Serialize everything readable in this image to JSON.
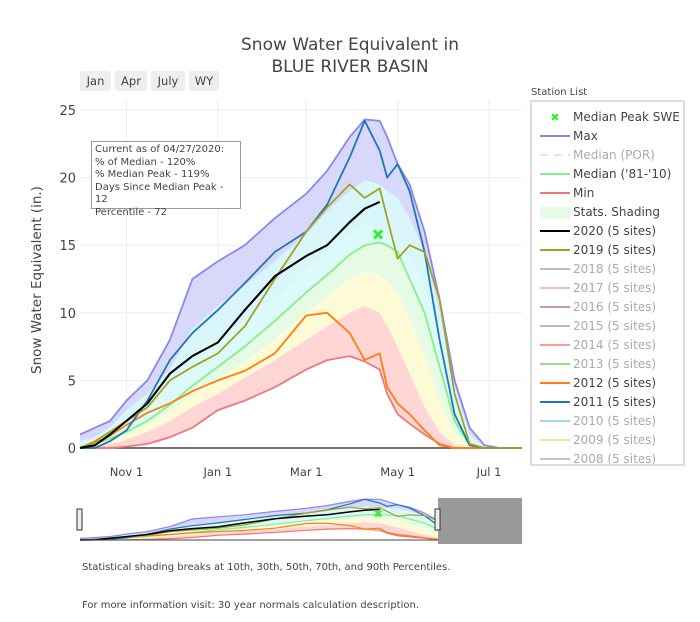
{
  "title_line1": "Snow Water Equivalent in",
  "title_line2": "BLUE RIVER BASIN",
  "range_buttons": [
    "Jan",
    "Apr",
    "July",
    "WY"
  ],
  "station_list_title": "Station List",
  "info_box": [
    "Current as of 04/27/2020:",
    "% of Median - 120%",
    "% Median Peak - 119%",
    "Days Since Median Peak - 12",
    "Percentile - 72"
  ],
  "footnotes": [
    "Statistical shading breaks at 10th, 30th, 50th, 70th, and 90th Percentiles.",
    "For more information visit: 30 year normals calculation description."
  ],
  "legend": [
    {
      "label": "Median Peak SWE",
      "type": "marker",
      "color": "#33ee33",
      "active": true
    },
    {
      "label": "Max",
      "type": "line",
      "color": "#8888ee",
      "active": true
    },
    {
      "label": "Median (POR)",
      "type": "dash",
      "color": "#ccf5cc",
      "active": false
    },
    {
      "label": "Median ('81-'10)",
      "type": "line",
      "color": "#88ee88",
      "active": true
    },
    {
      "label": "Min",
      "type": "line",
      "color": "#ee7777",
      "active": true
    },
    {
      "label": "Stats. Shading",
      "type": "fill",
      "color": "#e6fbe6",
      "active": true
    },
    {
      "label": "2020 (5 sites)",
      "type": "line",
      "color": "#000000",
      "active": true
    },
    {
      "label": "2019 (5 sites)",
      "type": "line",
      "color": "#a3a31f",
      "active": true
    },
    {
      "label": "2018 (5 sites)",
      "type": "line",
      "color": "#bbbbbb",
      "active": false
    },
    {
      "label": "2017 (5 sites)",
      "type": "line",
      "color": "#f7b6d2",
      "active": false
    },
    {
      "label": "2016 (5 sites)",
      "type": "line",
      "color": "#c49c94",
      "active": false
    },
    {
      "label": "2015 (5 sites)",
      "type": "line",
      "color": "#c5b0d5",
      "active": false
    },
    {
      "label": "2014 (5 sites)",
      "type": "line",
      "color": "#ff9896",
      "active": false
    },
    {
      "label": "2013 (5 sites)",
      "type": "line",
      "color": "#98df8a",
      "active": false
    },
    {
      "label": "2012 (5 sites)",
      "type": "line",
      "color": "#ff7f0e",
      "active": true
    },
    {
      "label": "2011 (5 sites)",
      "type": "line",
      "color": "#1f77b4",
      "active": true
    },
    {
      "label": "2010 (5 sites)",
      "type": "line",
      "color": "#9edae5",
      "active": false
    },
    {
      "label": "2009 (5 sites)",
      "type": "line",
      "color": "#e7e59a",
      "active": false
    },
    {
      "label": "2008 (5 sites)",
      "type": "line",
      "color": "#c7c7c7",
      "active": false
    }
  ],
  "chart_data": {
    "type": "line",
    "title": "Snow Water Equivalent in BLUE RIVER BASIN",
    "xlabel": "",
    "ylabel": "Snow Water Equivalent (in.)",
    "x_unit": "day of water year (0 = Oct 1)",
    "xlim": [
      0,
      295
    ],
    "ylim": [
      0,
      25
    ],
    "y_ticks": [
      0,
      5,
      10,
      15,
      20,
      25
    ],
    "x_ticks": [
      {
        "day": 31,
        "label": "Nov  1"
      },
      {
        "day": 92,
        "label": "Jan  1"
      },
      {
        "day": 151,
        "label": "Mar  1"
      },
      {
        "day": 212,
        "label": "May  1"
      },
      {
        "day": 273,
        "label": "Jul  1"
      }
    ],
    "grid": true,
    "legend_position": "right",
    "median_peak": {
      "day": 199,
      "value": 15.8,
      "label": "Median Peak SWE"
    },
    "shading_bands": [
      {
        "name": "min-p10",
        "color": "#ffd6d6"
      },
      {
        "name": "p10-p30",
        "color": "#fdfbd5"
      },
      {
        "name": "p30-p50",
        "color": "#e6fbe6"
      },
      {
        "name": "p50-p70",
        "color": "#ddfafa"
      },
      {
        "name": "p70-p90",
        "color": "#d9f7fb"
      },
      {
        "name": "p90-max",
        "color": "#d8d8fa"
      }
    ],
    "x": [
      0,
      10,
      20,
      31,
      45,
      60,
      75,
      92,
      110,
      130,
      151,
      165,
      180,
      190,
      200,
      205,
      212,
      220,
      230,
      240,
      250,
      260,
      270,
      280,
      295
    ],
    "series": [
      {
        "name": "Max",
        "color": "#8888ee",
        "values": [
          1.0,
          1.5,
          2.0,
          3.5,
          5.0,
          8.0,
          12.5,
          13.8,
          15.0,
          17.0,
          18.8,
          20.5,
          23.0,
          24.3,
          24.2,
          23.0,
          21.0,
          19.5,
          16.0,
          11.0,
          5.0,
          1.5,
          0.2,
          0,
          0
        ]
      },
      {
        "name": "p90",
        "color": "none",
        "values": [
          0.5,
          0.8,
          1.5,
          2.8,
          4.0,
          5.8,
          8.8,
          10.5,
          12.0,
          13.8,
          15.8,
          17.5,
          19.0,
          19.8,
          19.5,
          19.0,
          18.5,
          17.0,
          14.5,
          10.0,
          4.5,
          1.0,
          0.1,
          0,
          0
        ]
      },
      {
        "name": "p70",
        "color": "none",
        "values": [
          0.3,
          0.6,
          1.2,
          2.2,
          3.2,
          4.8,
          6.5,
          8.0,
          9.5,
          11.0,
          13.0,
          14.5,
          15.8,
          16.5,
          16.2,
          15.8,
          15.5,
          14.0,
          12.0,
          8.0,
          3.0,
          0.5,
          0,
          0,
          0
        ]
      },
      {
        "name": "Median ('81-'10)",
        "color": "#88ee88",
        "values": [
          0.1,
          0.3,
          0.7,
          1.2,
          2.0,
          3.2,
          4.6,
          6.0,
          7.5,
          9.4,
          11.5,
          12.8,
          14.3,
          15.0,
          15.2,
          15.0,
          14.5,
          12.5,
          10.0,
          6.0,
          2.0,
          0.2,
          0,
          0,
          0
        ]
      },
      {
        "name": "p30",
        "color": "none",
        "values": [
          0,
          0.2,
          0.5,
          1.0,
          1.7,
          2.7,
          3.9,
          5.0,
          6.4,
          8.0,
          10.0,
          11.2,
          12.5,
          13.0,
          12.8,
          12.3,
          11.5,
          9.5,
          7.0,
          3.5,
          1.0,
          0,
          0,
          0,
          0
        ]
      },
      {
        "name": "p10",
        "color": "none",
        "values": [
          0,
          0.1,
          0.3,
          0.6,
          1.2,
          2.0,
          3.0,
          4.0,
          5.2,
          6.5,
          8.0,
          9.0,
          10.0,
          10.5,
          10.0,
          9.0,
          7.5,
          5.5,
          3.0,
          1.2,
          0.2,
          0,
          0,
          0,
          0
        ]
      },
      {
        "name": "Min",
        "color": "#ee7777",
        "values": [
          0,
          0,
          0,
          0.1,
          0.3,
          0.8,
          1.5,
          2.8,
          3.5,
          4.5,
          5.8,
          6.5,
          6.8,
          6.4,
          5.8,
          4.0,
          2.5,
          1.8,
          1.0,
          0.3,
          0,
          0,
          0,
          0,
          0
        ]
      },
      {
        "name": "2020 (5 sites)",
        "color": "#000000",
        "values": [
          0,
          0.2,
          1.0,
          2.0,
          3.3,
          5.5,
          6.8,
          7.8,
          10.2,
          12.7,
          14.2,
          15.0,
          16.7,
          17.7,
          18.2,
          null,
          null,
          null,
          null,
          null,
          null,
          null,
          null,
          null,
          null
        ]
      },
      {
        "name": "2019 (5 sites)",
        "color": "#a3a31f",
        "values": [
          0,
          0.5,
          1.2,
          2.0,
          3.0,
          5.0,
          6.0,
          7.0,
          9.0,
          12.5,
          16.0,
          17.8,
          19.5,
          18.5,
          19.2,
          17.0,
          14.0,
          15.0,
          14.5,
          11.0,
          4.0,
          0.3,
          0,
          0,
          0
        ]
      },
      {
        "name": "2012 (5 sites)",
        "color": "#ff7f0e",
        "values": [
          0,
          0.4,
          0.9,
          1.7,
          2.6,
          3.3,
          4.2,
          5.0,
          5.7,
          7.0,
          9.8,
          10.0,
          8.5,
          6.5,
          7.0,
          4.5,
          3.3,
          2.5,
          1.3,
          0.2,
          0,
          0,
          0,
          0,
          0
        ]
      },
      {
        "name": "2011 (5 sites)",
        "color": "#1f77b4",
        "values": [
          0,
          0,
          0.5,
          1.3,
          3.5,
          6.5,
          8.5,
          10.2,
          12.2,
          14.5,
          16.0,
          18.0,
          21.5,
          24.2,
          22.0,
          20.0,
          21.0,
          19.0,
          14.5,
          8.0,
          2.5,
          0.2,
          0,
          0,
          0
        ]
      }
    ]
  }
}
